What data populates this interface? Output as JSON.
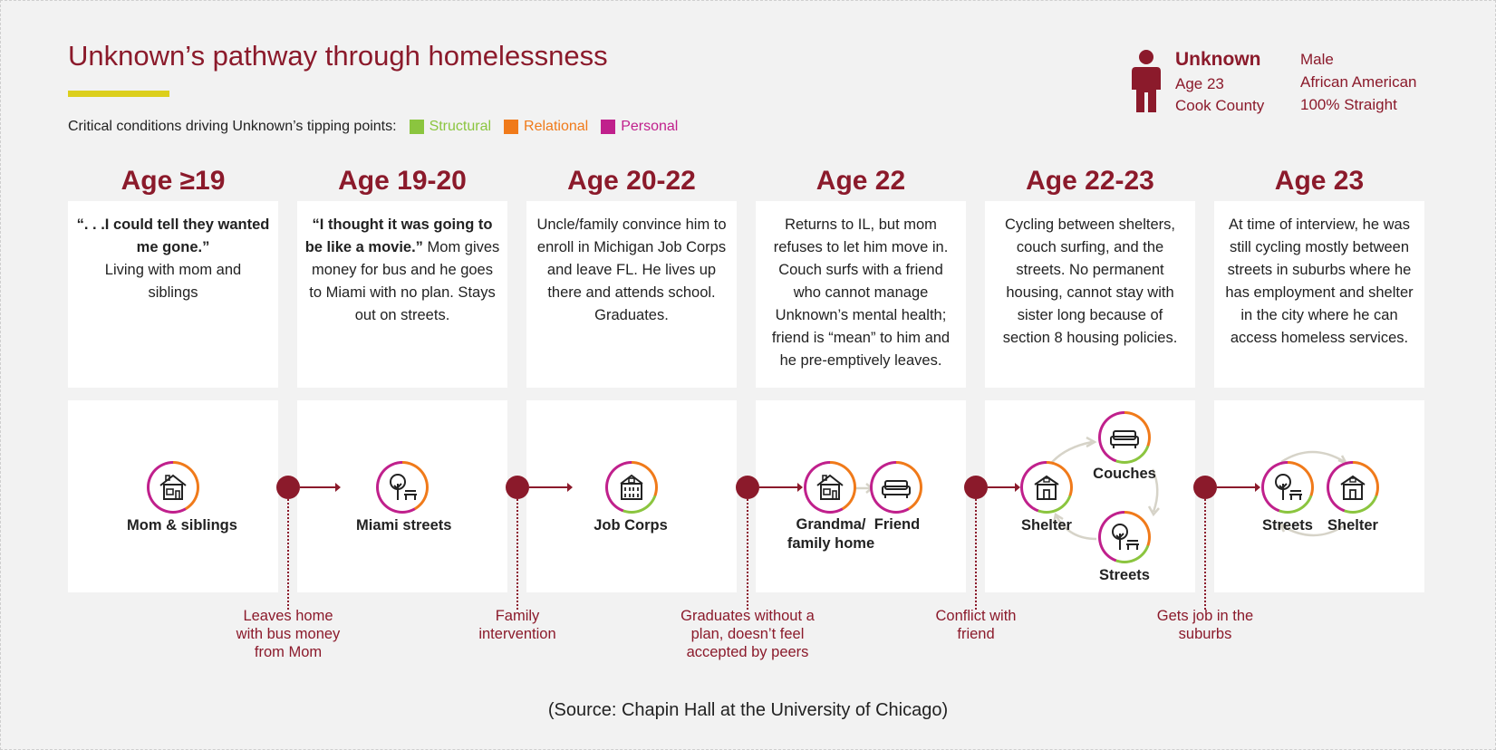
{
  "title": "Unknown’s pathway through homelessness",
  "accent_color": "#dccf1c",
  "brand_color": "#8b1a2b",
  "legend": {
    "label": "Critical conditions driving Unknown’s tipping points:",
    "items": [
      {
        "label": "Structural",
        "color": "#8bc53f"
      },
      {
        "label": "Relational",
        "color": "#f07a1a"
      },
      {
        "label": "Personal",
        "color": "#c0208c"
      }
    ]
  },
  "profile": {
    "icon": "person-icon",
    "name": "Unknown",
    "age": "Age 23",
    "county": "Cook County",
    "gender": "Male",
    "race": "African American",
    "orientation": "100% Straight"
  },
  "stages": [
    {
      "age": "Age ≥19",
      "quote": "“. . .I could tell they wanted me gone.”",
      "text": "Living with mom and siblings",
      "locations": [
        {
          "label": "Mom & siblings",
          "icon": "house-icon"
        }
      ]
    },
    {
      "age": "Age 19-20",
      "quote": "“I thought it was going to be like a movie.”",
      "text": " Mom gives money for bus and he goes to Miami with no plan. Stays out on streets.",
      "locations": [
        {
          "label": "Miami streets",
          "icon": "tree-bench-icon"
        }
      ]
    },
    {
      "age": "Age 20-22",
      "quote": "",
      "text": "Uncle/family convince him to enroll in Michigan Job Corps and leave FL. He lives up there and attends school. Graduates.",
      "locations": [
        {
          "label": "Job Corps",
          "icon": "building-icon"
        }
      ]
    },
    {
      "age": "Age 22",
      "quote": "",
      "text": "Returns to IL,  but mom refuses to let him move in. Couch surfs with a friend who cannot manage Unknown’s mental health; friend is “mean” to him and he pre-emptively leaves.",
      "locations": [
        {
          "label": "Grandma/ family home",
          "icon": "house-icon"
        },
        {
          "label": "Friend",
          "icon": "couch-icon"
        }
      ]
    },
    {
      "age": "Age 22-23",
      "quote": "",
      "text": "Cycling between shelters, couch surfing, and the streets. No permanent housing, cannot stay with sister long because of section 8 housing policies.",
      "locations": [
        {
          "label": "Shelter",
          "icon": "shelter-icon"
        },
        {
          "label": "Couches",
          "icon": "couch-icon"
        },
        {
          "label": "Streets",
          "icon": "tree-bench-icon"
        }
      ]
    },
    {
      "age": "Age 23",
      "quote": "",
      "text": "At time of interview, he was still cycling mostly between streets in suburbs where he has employment and shelter in the city where he can access homeless services.",
      "locations": [
        {
          "label": "Streets",
          "icon": "tree-bench-icon"
        },
        {
          "label": "Shelter",
          "icon": "shelter-icon"
        }
      ]
    }
  ],
  "events": [
    "Leaves home with bus money from Mom",
    "Family intervention",
    "Graduates without a plan, doesn’t feel accepted by peers",
    "Conflict with friend",
    "Gets job in the suburbs"
  ],
  "source": "(Source: Chapin Hall at the University of Chicago)"
}
